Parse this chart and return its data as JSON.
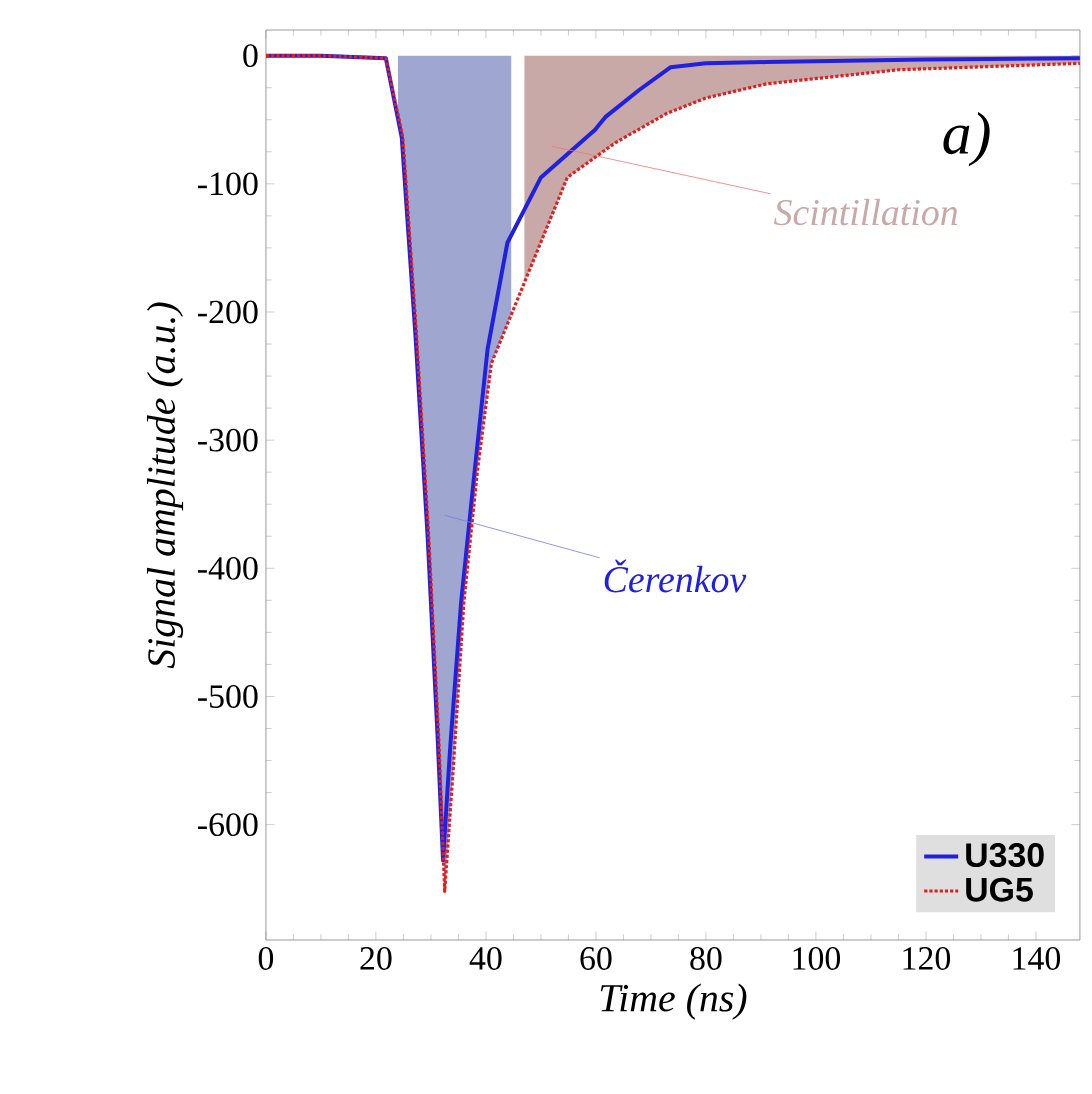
{
  "chart_data": {
    "type": "line",
    "xlabel": "Time (ns)",
    "ylabel": "Signal amplitude (a.u.)",
    "xlim": [
      0,
      148
    ],
    "ylim": [
      -690,
      20
    ],
    "xticks": [
      0,
      20,
      40,
      60,
      80,
      100,
      120,
      140
    ],
    "yticks": [
      -600,
      -500,
      -400,
      -300,
      -200,
      -100,
      0
    ],
    "legend": "bottom right",
    "marker": "none",
    "grid": false,
    "series": [
      {
        "name": "U330",
        "color": "#2020e0",
        "line_style": "solid",
        "x": [
          0,
          10,
          21.8,
          24.7,
          27.2,
          29.4,
          31.2,
          32.2,
          33.5,
          35.5,
          38,
          40.3,
          43.9,
          50,
          59.8,
          61.7,
          67.8,
          73.6,
          80,
          91,
          120,
          148
        ],
        "values": [
          0,
          0,
          -2,
          -64,
          -219,
          -375,
          -530,
          -628,
          -540,
          -426,
          -322,
          -229,
          -146,
          -95,
          -58,
          -48,
          -27,
          -9,
          -6,
          -5,
          -3,
          -2
        ]
      },
      {
        "name": "UG5",
        "color": "#e02020",
        "line_style": "dotted",
        "x": [
          0,
          10,
          21.8,
          24.9,
          27.4,
          29.6,
          31.5,
          32.5,
          34,
          36,
          38.5,
          41,
          48.9,
          54.8,
          63.5,
          72.9,
          80,
          91,
          115,
          148
        ],
        "values": [
          0,
          0,
          -2,
          -64,
          -219,
          -375,
          -540,
          -652,
          -560,
          -426,
          -322,
          -240,
          -157,
          -95,
          -68,
          -45,
          -33,
          -22,
          -11,
          -6
        ]
      },
      {
        "name": "Čerenkov",
        "type": "area",
        "color": "#9fa6cf",
        "x": [
          24,
          24.9,
          27.4,
          29.6,
          31.5,
          32.5,
          34,
          36,
          38.5,
          41,
          44.6
        ],
        "values": [
          -40,
          -64,
          -219,
          -375,
          -540,
          -652,
          -560,
          -426,
          -322,
          -240,
          -202
        ]
      },
      {
        "name": "Scintillation",
        "type": "area",
        "color": "#c9a8a8",
        "x": [
          47,
          48.9,
          54.8,
          63.5,
          72.9,
          80,
          91,
          115,
          148
        ],
        "values": [
          -177,
          -157,
          -95,
          -68,
          -45,
          -33,
          -22,
          -11,
          -6
        ]
      }
    ],
    "annotations": [
      "a)"
    ]
  }
}
